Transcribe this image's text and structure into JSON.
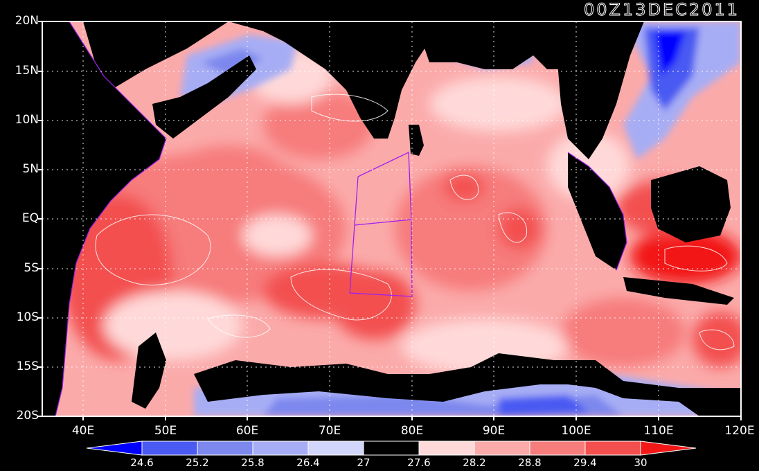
{
  "title": "00Z13DEC2011",
  "axes": {
    "y_labels": [
      "20N",
      "15N",
      "10N",
      "5N",
      "EQ",
      "5S",
      "10S",
      "15S",
      "20S"
    ],
    "x_labels": [
      "40E",
      "50E",
      "60E",
      "70E",
      "80E",
      "90E",
      "100E",
      "110E",
      "120E"
    ],
    "lon_range": [
      35,
      120
    ],
    "lat_range": [
      -20,
      20
    ]
  },
  "colorbar": {
    "labels": [
      "24.6",
      "25.2",
      "25.8",
      "26.4",
      "27",
      "27.6",
      "28.2",
      "28.8",
      "29.4",
      "30"
    ],
    "colors": [
      "#0000ff",
      "#4a5af2",
      "#7d88ee",
      "#a7adf4",
      "#d3d6fb",
      "#000000",
      "#ffd9d9",
      "#fbaaaa",
      "#f77c7c",
      "#f34f4f",
      "#f21818"
    ]
  },
  "colors": {
    "land": "#000000",
    "warm": "#f77c7c",
    "cool": "#7d88ee",
    "box": "#a020f0"
  }
}
